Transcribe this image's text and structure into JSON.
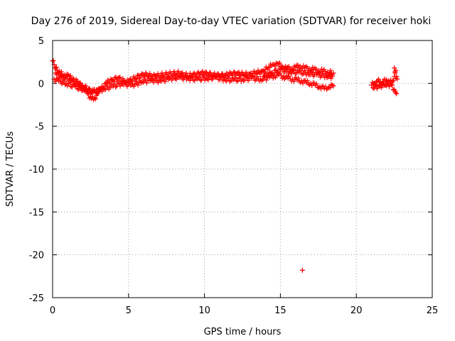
{
  "chart_data": {
    "type": "scatter",
    "title": "Day 276 of 2019, Sidereal Day-to-day VTEC variation (SDTVAR) for receiver hoki",
    "xlabel": "GPS time / hours",
    "ylabel": "SDTVAR / TECUs",
    "xlim": [
      0,
      25
    ],
    "ylim": [
      -25,
      5
    ],
    "xticks": [
      0,
      5,
      10,
      15,
      20,
      25
    ],
    "yticks": [
      5,
      0,
      -5,
      -10,
      -15,
      -20,
      -25
    ],
    "grid": true,
    "marker": "+",
    "color": "#ff0000",
    "series": [
      {
        "name": "SDTVAR",
        "x": [
          0.0,
          0.1,
          0.2,
          0.3,
          0.5,
          0.8,
          1.1,
          1.4,
          1.7,
          2.0,
          2.3,
          2.5,
          2.7,
          2.9,
          3.2,
          3.5,
          3.9,
          4.3,
          4.7,
          5.0,
          5.4,
          5.8,
          6.2,
          6.6,
          7.0,
          7.4,
          7.8,
          8.2,
          8.6,
          9.0,
          9.4,
          9.8,
          10.2,
          10.6,
          11.0,
          11.4,
          11.8,
          12.2,
          12.6,
          13.0,
          13.4,
          13.8,
          14.2,
          14.5,
          14.8,
          15.1,
          15.4,
          15.7,
          16.0,
          16.3,
          16.6,
          16.9,
          17.2,
          17.5,
          17.8,
          18.1,
          18.5,
          0.1,
          0.4,
          0.9,
          1.5,
          2.2,
          2.8,
          3.4,
          4.0,
          4.6,
          5.2,
          5.9,
          6.5,
          7.1,
          7.7,
          8.3,
          8.9,
          9.5,
          10.1,
          10.7,
          11.3,
          11.9,
          12.5,
          13.1,
          13.7,
          14.3,
          14.6,
          14.9,
          15.2,
          15.5,
          15.8,
          16.1,
          16.4,
          16.7,
          17.0,
          17.3,
          17.6,
          17.9,
          18.2,
          18.5,
          0.2,
          0.6,
          1.2,
          1.9,
          2.6,
          3.1,
          13.9,
          14.4,
          15.0,
          15.6,
          16.2,
          16.8,
          17.4,
          18.0,
          18.4,
          16.45,
          21.0,
          21.2,
          21.4,
          21.6,
          21.8,
          22.0,
          22.2,
          22.4,
          22.5,
          22.6,
          22.7,
          21.1,
          21.5,
          21.9,
          22.3,
          22.55,
          22.65,
          22.5,
          22.6
        ],
        "y": [
          2.6,
          2.2,
          1.8,
          1.5,
          1.2,
          1.0,
          0.8,
          0.5,
          0.0,
          -0.6,
          -1.2,
          -1.6,
          -1.9,
          -1.4,
          -0.5,
          0.0,
          0.4,
          0.6,
          0.3,
          0.2,
          0.6,
          0.9,
          1.0,
          0.8,
          0.9,
          1.0,
          1.1,
          1.2,
          1.0,
          0.9,
          1.0,
          1.2,
          1.1,
          1.0,
          0.9,
          1.0,
          1.1,
          1.2,
          1.0,
          1.1,
          1.2,
          1.4,
          1.8,
          2.2,
          2.3,
          2.0,
          1.8,
          1.7,
          1.9,
          2.0,
          1.8,
          1.7,
          1.6,
          1.5,
          1.4,
          1.3,
          1.2,
          0.5,
          0.3,
          0.0,
          -0.4,
          -0.8,
          -1.0,
          -0.6,
          -0.3,
          0.0,
          -0.2,
          0.2,
          0.4,
          0.3,
          0.6,
          0.7,
          0.6,
          0.5,
          0.6,
          0.7,
          0.5,
          0.4,
          0.5,
          0.6,
          0.5,
          0.7,
          0.9,
          1.0,
          0.8,
          0.6,
          0.5,
          0.4,
          0.3,
          0.1,
          0.0,
          -0.2,
          -0.4,
          -0.6,
          -0.4,
          -0.3,
          1.2,
          0.8,
          0.4,
          -0.2,
          -1.0,
          -0.8,
          0.8,
          1.2,
          1.6,
          1.4,
          1.3,
          1.2,
          1.0,
          0.9,
          0.8,
          -21.8,
          -0.2,
          0.0,
          0.3,
          0.1,
          0.2,
          0.4,
          0.1,
          0.3,
          0.8,
          1.5,
          0.5,
          -0.5,
          -0.3,
          -0.2,
          -0.1,
          -0.9,
          -1.2,
          1.8,
          0.6
        ]
      }
    ]
  }
}
